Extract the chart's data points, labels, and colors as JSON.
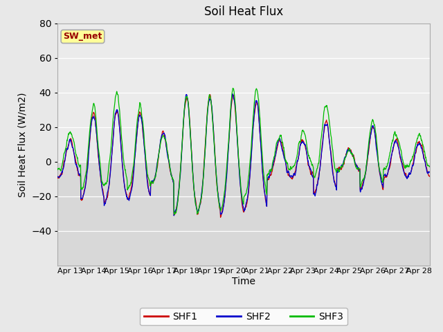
{
  "title": "Soil Heat Flux",
  "ylabel": "Soil Heat Flux (W/m2)",
  "xlabel": "Time",
  "ylim": [
    -60,
    80
  ],
  "yticks": [
    -40,
    -20,
    0,
    20,
    40,
    60,
    80
  ],
  "line_colors": {
    "SHF1": "#cc0000",
    "SHF2": "#0000cc",
    "SHF3": "#00bb00"
  },
  "legend_colors": {
    "SHF1": "#cc0000",
    "SHF2": "#0000cc",
    "SHF3": "#00bb00"
  },
  "annotation_text": "SW_met",
  "annotation_text_color": "#990000",
  "annotation_bg": "#ffff99",
  "annotation_border": "#aaaaaa",
  "x_tick_labels": [
    "Apr 13",
    "Apr 14",
    "Apr 15",
    "Apr 16",
    "Apr 17",
    "Apr 18",
    "Apr 19",
    "Apr 20",
    "Apr 21",
    "Apr 22",
    "Apr 23",
    "Apr 24",
    "Apr 25",
    "Apr 26",
    "Apr 27",
    "Apr 28"
  ],
  "n_days": 16,
  "fig_bg": "#e8e8e8",
  "plot_bg_lower": "#d8d8d8",
  "plot_bg_upper": "#ebebeb"
}
